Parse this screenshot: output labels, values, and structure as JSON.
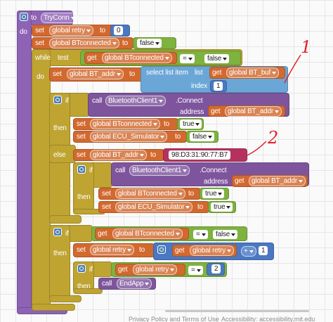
{
  "blocks": [
    [
      "to",
      "TryConn",
      "do"
    ],
    [
      "set",
      "global retry",
      "to"
    ],
    [
      0
    ],
    [
      "set",
      "global BTconnected",
      "to"
    ],
    [
      "false"
    ],
    [
      "while",
      "test",
      "do"
    ],
    [
      "="
    ],
    [
      "get",
      "global BTconnected"
    ],
    [
      "false"
    ],
    [
      "set",
      "global BT_addr",
      "to"
    ],
    [
      "select list item",
      "list",
      "index"
    ],
    [
      "get",
      "global BT_buf"
    ],
    [
      1
    ],
    [
      "if",
      "then",
      "else"
    ],
    [
      "call",
      "BluetoothClient1",
      ".Connect",
      "address"
    ],
    [
      "get",
      "global BT_addr"
    ],
    [
      "set",
      "global BTconnected",
      "to"
    ],
    [
      "true"
    ],
    [
      "set",
      "global ECU_Simulator",
      "to"
    ],
    [
      "false"
    ],
    [
      "set",
      "global BT_addr",
      "to"
    ],
    [
      "98:D3:31:90:77:B7"
    ],
    [
      "if",
      "then"
    ],
    [
      "call",
      "BluetoothClient1",
      ".Connect",
      "address"
    ],
    [
      "get",
      "global BT_addr"
    ],
    [
      "set",
      "global BTconnected",
      "to"
    ],
    [
      "true"
    ],
    [
      "set",
      "global ECU_Simulator",
      "to"
    ],
    [
      "true"
    ],
    [
      "if",
      "then"
    ],
    [
      "="
    ],
    [
      "get",
      "global BTconnected"
    ],
    [
      "false"
    ],
    [
      "set",
      "global retry",
      "to"
    ],
    [
      "+"
    ],
    [
      "get",
      "global retry"
    ],
    [
      1
    ],
    [
      "if",
      "then"
    ],
    [
      "="
    ],
    [
      "get",
      "global retry"
    ],
    [
      2
    ],
    [
      "call",
      "EndApp"
    ]
  ],
  "annotations": [
    "1",
    "2"
  ],
  "footer": [
    "Privacy Policy and Terms of Use",
    "Accessibility: accessibility.mit.edu"
  ]
}
